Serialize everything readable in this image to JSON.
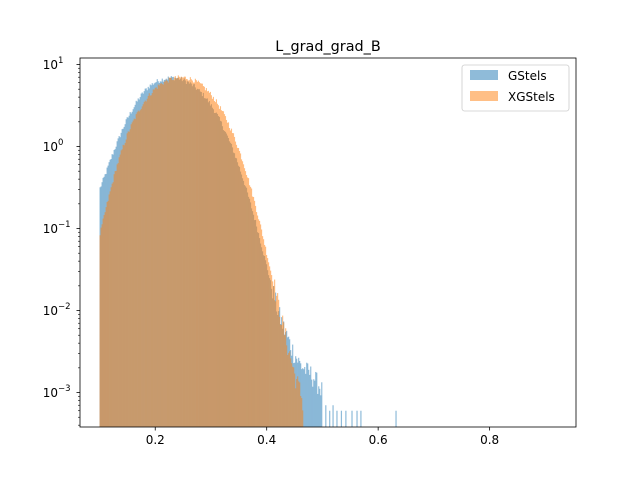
{
  "chart_data": {
    "type": "histogram",
    "title": "L_grad_grad_B",
    "xlabel": "",
    "ylabel": "",
    "xlim": [
      0.065,
      0.955
    ],
    "ylim": [
      0.00038,
      12
    ],
    "yscale": "log",
    "grid": false,
    "legend_position": "top-right",
    "x_ticks": [
      {
        "value": 0.2,
        "label": "0.2"
      },
      {
        "value": 0.4,
        "label": "0.4"
      },
      {
        "value": 0.6,
        "label": "0.6"
      },
      {
        "value": 0.8,
        "label": "0.8"
      }
    ],
    "y_ticks": [
      {
        "value": 0.001,
        "base": "10",
        "exp": "−3"
      },
      {
        "value": 0.01,
        "base": "10",
        "exp": "−2"
      },
      {
        "value": 0.1,
        "base": "10",
        "exp": "−1"
      },
      {
        "value": 1,
        "base": "10",
        "exp": "0"
      },
      {
        "value": 10,
        "base": "10",
        "exp": "1"
      }
    ],
    "series": [
      {
        "name": "GStels",
        "color": "#1f77b4",
        "alpha": 0.5,
        "density_profile": [
          [
            0.1,
            0.3
          ],
          [
            0.11,
            0.45
          ],
          [
            0.12,
            0.7
          ],
          [
            0.13,
            1.05
          ],
          [
            0.14,
            1.55
          ],
          [
            0.15,
            2.2
          ],
          [
            0.16,
            2.9
          ],
          [
            0.17,
            3.8
          ],
          [
            0.18,
            4.7
          ],
          [
            0.19,
            5.5
          ],
          [
            0.2,
            6.1
          ],
          [
            0.21,
            6.5
          ],
          [
            0.22,
            6.8
          ],
          [
            0.23,
            6.9
          ],
          [
            0.24,
            6.8
          ],
          [
            0.25,
            6.5
          ],
          [
            0.26,
            6.0
          ],
          [
            0.27,
            5.4
          ],
          [
            0.28,
            4.7
          ],
          [
            0.29,
            4.0
          ],
          [
            0.3,
            3.2
          ],
          [
            0.31,
            2.5
          ],
          [
            0.32,
            1.85
          ],
          [
            0.33,
            1.3
          ],
          [
            0.34,
            0.9
          ],
          [
            0.35,
            0.58
          ],
          [
            0.36,
            0.36
          ],
          [
            0.37,
            0.21
          ],
          [
            0.38,
            0.12
          ],
          [
            0.39,
            0.065
          ],
          [
            0.4,
            0.035
          ],
          [
            0.41,
            0.018
          ],
          [
            0.42,
            0.0095
          ],
          [
            0.43,
            0.006
          ],
          [
            0.44,
            0.004
          ],
          [
            0.45,
            0.0028
          ],
          [
            0.46,
            0.0021
          ],
          [
            0.47,
            0.0018
          ],
          [
            0.48,
            0.0016
          ],
          [
            0.49,
            0.0013
          ],
          [
            0.5,
            0.001
          ]
        ],
        "sparse_tail": [
          [
            0.505,
            0.0007
          ],
          [
            0.512,
            0.0006
          ],
          [
            0.518,
            0.0007
          ],
          [
            0.525,
            0.0006
          ],
          [
            0.533,
            0.0006
          ],
          [
            0.541,
            0.0006
          ],
          [
            0.552,
            0.0006
          ],
          [
            0.561,
            0.0006
          ],
          [
            0.568,
            0.0006
          ],
          [
            0.631,
            0.0006
          ]
        ]
      },
      {
        "name": "XGStels",
        "color": "#ff7f0e",
        "alpha": 0.5,
        "density_profile": [
          [
            0.1,
            0.08
          ],
          [
            0.11,
            0.16
          ],
          [
            0.12,
            0.3
          ],
          [
            0.13,
            0.55
          ],
          [
            0.14,
            0.9
          ],
          [
            0.15,
            1.4
          ],
          [
            0.16,
            2.0
          ],
          [
            0.17,
            2.7
          ],
          [
            0.18,
            3.5
          ],
          [
            0.19,
            4.3
          ],
          [
            0.2,
            5.1
          ],
          [
            0.21,
            5.8
          ],
          [
            0.22,
            6.3
          ],
          [
            0.23,
            6.7
          ],
          [
            0.24,
            6.9
          ],
          [
            0.25,
            6.95
          ],
          [
            0.26,
            6.8
          ],
          [
            0.27,
            6.4
          ],
          [
            0.28,
            5.8
          ],
          [
            0.29,
            5.1
          ],
          [
            0.3,
            4.3
          ],
          [
            0.31,
            3.5
          ],
          [
            0.32,
            2.7
          ],
          [
            0.33,
            2.0
          ],
          [
            0.34,
            1.4
          ],
          [
            0.35,
            0.92
          ],
          [
            0.36,
            0.58
          ],
          [
            0.37,
            0.34
          ],
          [
            0.38,
            0.19
          ],
          [
            0.39,
            0.1
          ],
          [
            0.4,
            0.05
          ],
          [
            0.41,
            0.025
          ],
          [
            0.42,
            0.012
          ],
          [
            0.43,
            0.006
          ],
          [
            0.44,
            0.003
          ],
          [
            0.45,
            0.0016
          ],
          [
            0.46,
            0.001
          ],
          [
            0.465,
            0.0007
          ]
        ]
      }
    ]
  }
}
